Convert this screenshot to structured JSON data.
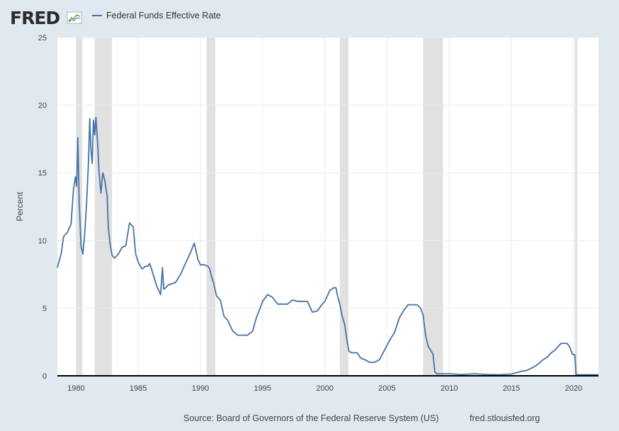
{
  "brand": {
    "logo_text": "FRED",
    "logo_icon": "trend-line-icon"
  },
  "colors": {
    "frame": "#e1e9f0",
    "series": "#4572a7",
    "recession": "#e1e1e1",
    "grid": "#e9ecef",
    "plot_bg": "#ffffff"
  },
  "footer": {
    "source": "Source: Board of Governors of the Federal Reserve System (US)",
    "site": "fred.stlouisfed.org"
  },
  "chart_data": {
    "type": "line",
    "title": "",
    "xlabel": "",
    "ylabel": "Percent",
    "xlim": [
      1978.5,
      2022.0
    ],
    "ylim": [
      0,
      25
    ],
    "x_ticks": [
      1980,
      1985,
      1990,
      1995,
      2000,
      2005,
      2010,
      2015,
      2020
    ],
    "y_ticks": [
      0,
      5,
      10,
      15,
      20,
      25
    ],
    "grid": true,
    "legend": "top-left",
    "recessions": [
      [
        1980.0,
        1980.5
      ],
      [
        1981.5,
        1982.9
      ],
      [
        1990.5,
        1991.2
      ],
      [
        2001.2,
        2001.9
      ],
      [
        2007.9,
        2009.5
      ],
      [
        2020.1,
        2020.3
      ]
    ],
    "series": [
      {
        "name": "Federal Funds Effective Rate",
        "color": "#4572a7",
        "x": [
          1978.5,
          1978.8,
          1979.0,
          1979.3,
          1979.6,
          1979.8,
          1979.95,
          1980.05,
          1980.15,
          1980.25,
          1980.4,
          1980.55,
          1980.7,
          1980.85,
          1981.0,
          1981.1,
          1981.2,
          1981.3,
          1981.4,
          1981.5,
          1981.6,
          1981.75,
          1981.85,
          1982.0,
          1982.15,
          1982.3,
          1982.5,
          1982.6,
          1982.75,
          1982.9,
          1983.1,
          1983.4,
          1983.7,
          1984.0,
          1984.3,
          1984.6,
          1984.8,
          1985.0,
          1985.3,
          1985.6,
          1985.8,
          1985.9,
          1986.0,
          1986.2,
          1986.5,
          1986.8,
          1986.95,
          1987.05,
          1987.2,
          1987.4,
          1987.7,
          1988.0,
          1988.4,
          1988.8,
          1989.2,
          1989.5,
          1989.8,
          1990.0,
          1990.3,
          1990.6,
          1990.75,
          1990.9,
          1991.05,
          1991.3,
          1991.6,
          1991.9,
          1992.2,
          1992.6,
          1993.0,
          1993.4,
          1993.8,
          1994.2,
          1994.5,
          1994.8,
          1995.0,
          1995.4,
          1995.8,
          1996.2,
          1996.6,
          1997.0,
          1997.4,
          1997.8,
          1998.2,
          1998.6,
          1998.8,
          1999.0,
          1999.4,
          1999.8,
          2000.0,
          2000.2,
          2000.4,
          2000.7,
          2000.9,
          2001.0,
          2001.2,
          2001.4,
          2001.6,
          2001.8,
          2001.95,
          2002.2,
          2002.6,
          2002.9,
          2003.2,
          2003.6,
          2004.0,
          2004.4,
          2004.8,
          2005.2,
          2005.6,
          2006.0,
          2006.4,
          2006.7,
          2007.0,
          2007.4,
          2007.7,
          2007.9,
          2008.1,
          2008.3,
          2008.5,
          2008.7,
          2008.85,
          2009.0,
          2009.5,
          2010.0,
          2011.0,
          2012.0,
          2013.0,
          2014.0,
          2015.0,
          2015.9,
          2016.2,
          2016.8,
          2017.2,
          2017.5,
          2017.9,
          2018.2,
          2018.5,
          2018.8,
          2019.0,
          2019.3,
          2019.5,
          2019.7,
          2019.9,
          2020.1,
          2020.2,
          2020.3,
          2020.6,
          2021.0,
          2021.5,
          2022.0
        ],
        "values": [
          8.0,
          9.0,
          10.3,
          10.6,
          11.2,
          13.8,
          14.7,
          14.0,
          17.6,
          13.0,
          9.6,
          9.0,
          10.5,
          12.8,
          15.8,
          19.0,
          16.7,
          15.7,
          18.9,
          17.8,
          19.1,
          17.0,
          15.1,
          13.5,
          15.0,
          14.5,
          13.3,
          10.9,
          9.7,
          8.9,
          8.7,
          9.0,
          9.5,
          9.6,
          11.3,
          11.0,
          9.0,
          8.4,
          7.9,
          8.1,
          8.1,
          8.3,
          8.1,
          7.5,
          6.6,
          6.0,
          8.0,
          6.4,
          6.5,
          6.7,
          6.8,
          6.9,
          7.5,
          8.3,
          9.1,
          9.8,
          8.6,
          8.2,
          8.2,
          8.1,
          7.9,
          7.3,
          6.9,
          5.9,
          5.6,
          4.4,
          4.1,
          3.3,
          3.0,
          3.0,
          3.0,
          3.3,
          4.3,
          5.0,
          5.5,
          6.0,
          5.8,
          5.3,
          5.3,
          5.3,
          5.6,
          5.5,
          5.5,
          5.5,
          5.1,
          4.7,
          4.8,
          5.3,
          5.5,
          5.9,
          6.3,
          6.5,
          6.5,
          6.0,
          5.3,
          4.4,
          3.8,
          2.5,
          1.8,
          1.7,
          1.7,
          1.3,
          1.2,
          1.0,
          1.0,
          1.2,
          1.9,
          2.6,
          3.2,
          4.3,
          4.9,
          5.25,
          5.25,
          5.25,
          5.0,
          4.5,
          3.0,
          2.2,
          1.9,
          1.6,
          0.3,
          0.15,
          0.15,
          0.15,
          0.1,
          0.15,
          0.1,
          0.08,
          0.13,
          0.35,
          0.38,
          0.65,
          0.9,
          1.15,
          1.4,
          1.7,
          1.9,
          2.2,
          2.4,
          2.4,
          2.38,
          2.1,
          1.6,
          1.55,
          0.05,
          0.08,
          0.08,
          0.08,
          0.08,
          0.08
        ]
      }
    ]
  }
}
